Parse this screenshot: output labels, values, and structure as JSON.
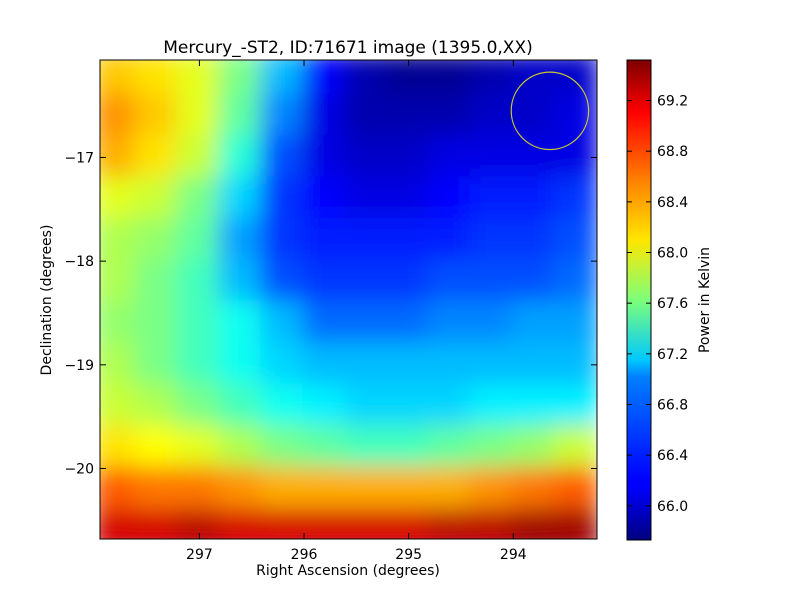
{
  "chart_data": {
    "type": "heatmap",
    "title": "Mercury_-ST2, ID:71671 image (1395.0,XX)",
    "xlabel": "Right Ascension (degrees)",
    "ylabel": "Declination (degrees)",
    "colorbar_label": "Power in Kelvin",
    "x_reversed": true,
    "xlim": [
      297.95,
      293.2
    ],
    "ylim": [
      -20.68,
      -16.06
    ],
    "x_ticks": [
      297,
      296,
      295,
      294
    ],
    "x_tick_labels": [
      "297",
      "296",
      "295",
      "294"
    ],
    "y_ticks": [
      -17,
      -18,
      -19,
      -20
    ],
    "y_tick_labels": [
      "−17",
      "−18",
      "−19",
      "−20"
    ],
    "color_range": [
      65.73,
      69.52
    ],
    "colorbar_ticks": [
      66.0,
      66.4,
      66.8,
      67.2,
      67.6,
      68.0,
      68.4,
      68.8,
      69.2
    ],
    "colorbar_tick_labels": [
      "66.0",
      "66.4",
      "66.8",
      "67.2",
      "67.6",
      "68.0",
      "68.4",
      "68.8",
      "69.2"
    ],
    "colormap": "jet",
    "grid": false,
    "declination_rows": [
      -16.2,
      -16.6,
      -17.0,
      -17.4,
      -17.8,
      -18.2,
      -18.6,
      -19.0,
      -19.4,
      -19.8,
      -20.2,
      -20.6
    ],
    "ra_columns": [
      297.8,
      297.4,
      297.0,
      296.6,
      296.2,
      295.8,
      295.4,
      295.0,
      294.6,
      294.2,
      293.8,
      293.4
    ],
    "values": [
      [
        68.3,
        68.2,
        68.0,
        67.6,
        66.9,
        66.2,
        65.9,
        65.8,
        65.8,
        65.9,
        66.0,
        66.0
      ],
      [
        68.5,
        68.3,
        68.0,
        67.5,
        66.7,
        66.1,
        65.9,
        65.9,
        65.9,
        66.0,
        66.0,
        66.1
      ],
      [
        68.4,
        68.2,
        67.9,
        67.3,
        66.5,
        66.1,
        66.0,
        66.0,
        66.1,
        66.1,
        66.1,
        66.1
      ],
      [
        68.0,
        67.9,
        67.6,
        67.0,
        66.4,
        66.2,
        66.1,
        66.1,
        66.2,
        66.3,
        66.3,
        66.4
      ],
      [
        67.8,
        67.7,
        67.5,
        66.8,
        66.4,
        66.3,
        66.3,
        66.3,
        66.3,
        66.4,
        66.4,
        66.5
      ],
      [
        67.8,
        67.6,
        67.4,
        66.9,
        66.5,
        66.4,
        66.4,
        66.4,
        66.5,
        66.5,
        66.5,
        66.6
      ],
      [
        67.7,
        67.6,
        67.4,
        67.2,
        66.9,
        66.6,
        66.6,
        66.6,
        66.7,
        66.7,
        66.8,
        66.8
      ],
      [
        67.8,
        67.6,
        67.4,
        67.2,
        67.0,
        66.9,
        66.9,
        66.9,
        66.9,
        66.9,
        66.9,
        66.9
      ],
      [
        67.9,
        67.8,
        67.6,
        67.4,
        67.2,
        67.1,
        67.0,
        67.0,
        67.0,
        67.1,
        67.1,
        67.1
      ],
      [
        68.2,
        68.1,
        68.0,
        67.8,
        67.6,
        67.5,
        67.4,
        67.4,
        67.5,
        67.6,
        67.7,
        67.9
      ],
      [
        68.7,
        68.6,
        68.6,
        68.5,
        68.4,
        68.4,
        68.4,
        68.4,
        68.4,
        68.5,
        68.6,
        68.7
      ],
      [
        69.2,
        69.2,
        69.3,
        69.2,
        69.2,
        69.2,
        69.2,
        69.2,
        69.3,
        69.3,
        69.4,
        69.4
      ]
    ],
    "beam_circle": {
      "ra": 293.65,
      "dec": -16.55,
      "radius_deg": 0.37,
      "color": "#c8c832"
    }
  }
}
